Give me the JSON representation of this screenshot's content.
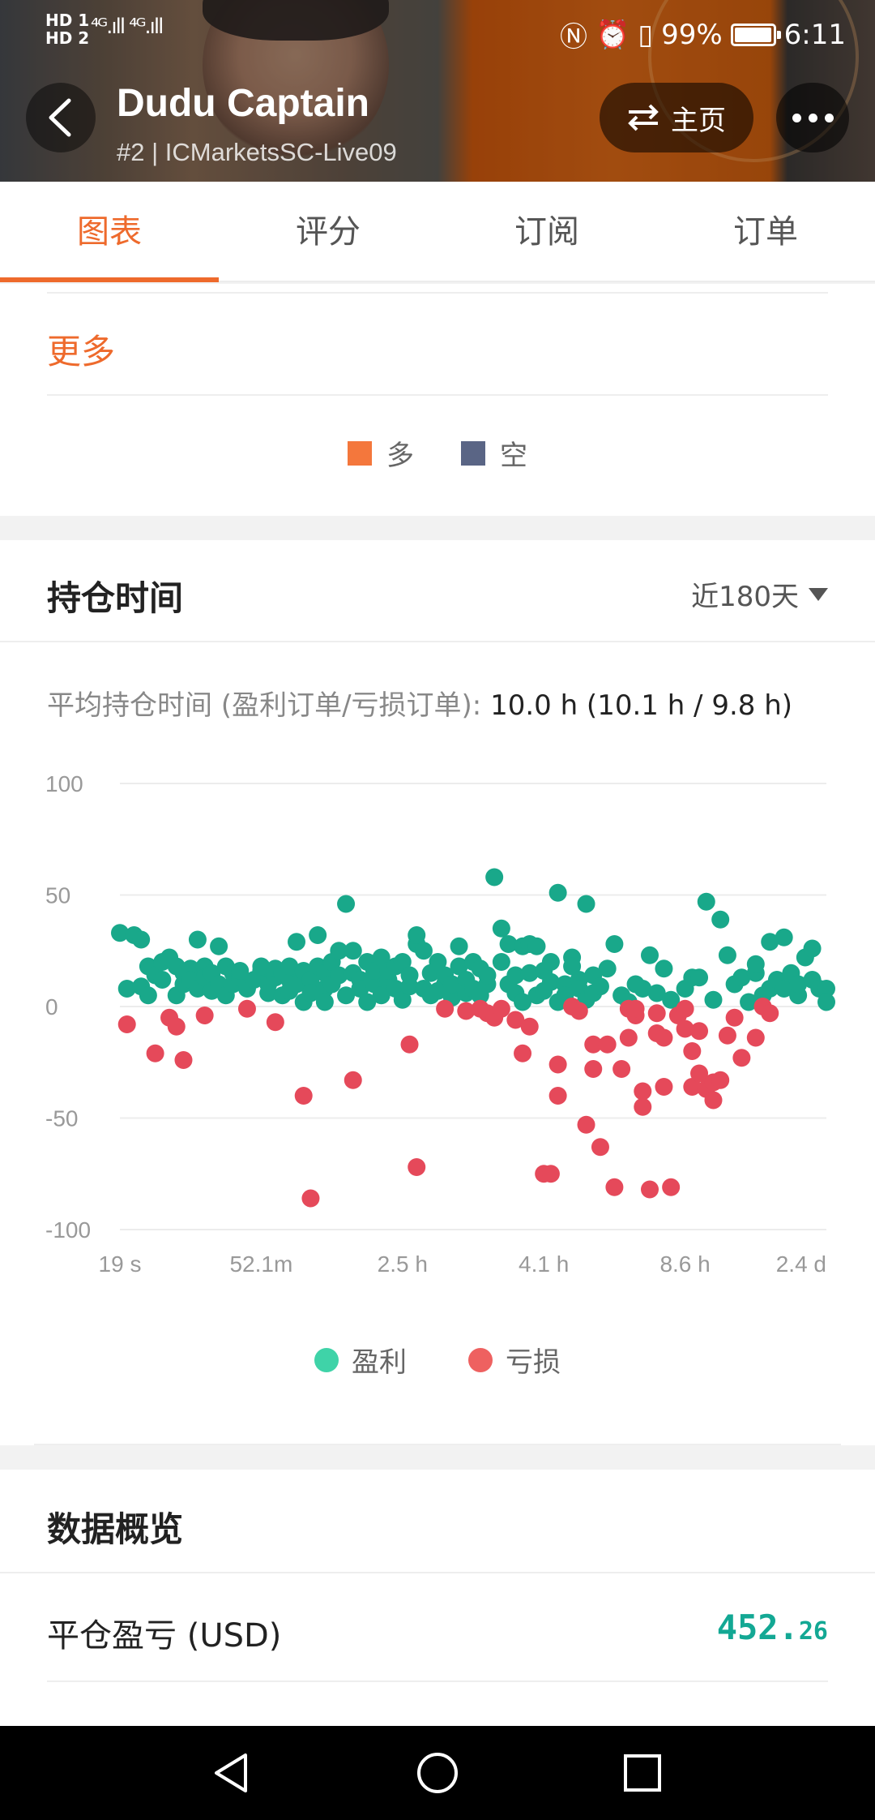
{
  "status_bar": {
    "hd1": "HD 1",
    "hd2": "HD 2",
    "signal": "⁴ᴳ.ıll ⁴ᴳ.ıll",
    "battery": "99%",
    "battery_level": 0.99,
    "time": "6:11"
  },
  "header": {
    "title": "Dudu Captain",
    "subtitle": "#2 | ICMarketsSC-Live09",
    "home_label": "主页"
  },
  "tabs": [
    {
      "label": "图表",
      "active": true
    },
    {
      "label": "评分",
      "active": false
    },
    {
      "label": "订阅",
      "active": false
    },
    {
      "label": "订单",
      "active": false
    }
  ],
  "direction_card": {
    "more_label": "更多",
    "legend": [
      {
        "label": "多",
        "color": "#f4773c"
      },
      {
        "label": "空",
        "color": "#5a6585"
      }
    ]
  },
  "holding_time": {
    "title": "持仓时间",
    "period": "近180天",
    "avg_label": "平均持仓时间 (盈利订单/亏损订单):",
    "avg_value": "10.0 h (10.1 h / 9.8 h)"
  },
  "chart_data": {
    "type": "scatter",
    "ylim": [
      -100,
      100
    ],
    "y_ticks": [
      "100",
      "50",
      "0",
      "-50",
      "-100"
    ],
    "x_ticks": [
      "19 s",
      "52.1m",
      "2.5 h",
      "4.1 h",
      "8.6 h",
      "2.4 d"
    ],
    "x_range": [
      0,
      100
    ],
    "series": [
      {
        "name": "盈利",
        "color": "#19a88a",
        "points": [
          [
            0,
            33
          ],
          [
            2,
            32
          ],
          [
            3,
            30
          ],
          [
            1,
            8
          ],
          [
            3,
            9
          ],
          [
            4,
            18
          ],
          [
            5,
            14
          ],
          [
            4,
            5
          ],
          [
            6,
            12
          ],
          [
            6,
            20
          ],
          [
            7,
            22
          ],
          [
            8,
            18
          ],
          [
            8,
            5
          ],
          [
            9,
            10
          ],
          [
            9,
            15
          ],
          [
            10,
            17
          ],
          [
            10,
            12
          ],
          [
            11,
            30
          ],
          [
            11,
            8
          ],
          [
            12,
            18
          ],
          [
            12,
            13
          ],
          [
            13,
            15
          ],
          [
            13,
            7
          ],
          [
            14,
            10
          ],
          [
            14,
            27
          ],
          [
            15,
            18
          ],
          [
            15,
            5
          ],
          [
            16,
            15
          ],
          [
            16,
            10
          ],
          [
            17,
            13
          ],
          [
            17,
            16
          ],
          [
            18,
            8
          ],
          [
            19,
            12
          ],
          [
            20,
            16
          ],
          [
            20,
            18
          ],
          [
            21,
            10
          ],
          [
            21,
            6
          ],
          [
            22,
            13
          ],
          [
            22,
            17
          ],
          [
            23,
            5
          ],
          [
            23,
            15
          ],
          [
            24,
            12
          ],
          [
            24,
            18
          ],
          [
            24,
            7
          ],
          [
            25,
            10
          ],
          [
            25,
            29
          ],
          [
            26,
            2
          ],
          [
            26,
            16
          ],
          [
            27,
            12
          ],
          [
            27,
            6
          ],
          [
            28,
            18
          ],
          [
            28,
            32
          ],
          [
            29,
            15
          ],
          [
            29,
            8
          ],
          [
            29,
            2
          ],
          [
            30,
            20
          ],
          [
            30,
            10
          ],
          [
            31,
            25
          ],
          [
            31,
            14
          ],
          [
            32,
            46
          ],
          [
            32,
            5
          ],
          [
            33,
            25
          ],
          [
            33,
            15
          ],
          [
            34,
            12
          ],
          [
            34,
            8
          ],
          [
            35,
            20
          ],
          [
            35,
            2
          ],
          [
            36,
            10
          ],
          [
            36,
            16
          ],
          [
            37,
            22
          ],
          [
            37,
            5
          ],
          [
            38,
            12
          ],
          [
            38,
            16
          ],
          [
            39,
            18
          ],
          [
            39,
            8
          ],
          [
            40,
            20
          ],
          [
            40,
            3
          ],
          [
            41,
            9
          ],
          [
            41,
            14
          ],
          [
            42,
            28
          ],
          [
            42,
            32
          ],
          [
            43,
            25
          ],
          [
            43,
            8
          ],
          [
            44,
            15
          ],
          [
            44,
            5
          ],
          [
            45,
            7
          ],
          [
            45,
            20
          ],
          [
            46,
            10
          ],
          [
            46,
            14
          ],
          [
            47,
            4
          ],
          [
            47,
            10
          ],
          [
            48,
            27
          ],
          [
            48,
            18
          ],
          [
            49,
            12
          ],
          [
            49,
            6
          ],
          [
            50,
            8
          ],
          [
            50,
            20
          ],
          [
            51,
            17
          ],
          [
            51,
            5
          ],
          [
            52,
            10
          ],
          [
            52,
            14
          ],
          [
            53,
            58
          ],
          [
            54,
            35
          ],
          [
            54,
            20
          ],
          [
            55,
            10
          ],
          [
            55,
            28
          ],
          [
            56,
            14
          ],
          [
            56,
            6
          ],
          [
            57,
            2
          ],
          [
            57,
            27
          ],
          [
            58,
            28
          ],
          [
            58,
            15
          ],
          [
            59,
            27
          ],
          [
            59,
            5
          ],
          [
            60,
            16
          ],
          [
            60,
            7
          ],
          [
            61,
            11
          ],
          [
            61,
            20
          ],
          [
            62,
            51
          ],
          [
            62,
            2
          ],
          [
            63,
            10
          ],
          [
            63,
            5
          ],
          [
            64,
            22
          ],
          [
            64,
            18
          ],
          [
            65,
            12
          ],
          [
            65,
            8
          ],
          [
            66,
            46
          ],
          [
            66,
            3
          ],
          [
            67,
            14
          ],
          [
            67,
            6
          ],
          [
            68,
            9
          ],
          [
            69,
            17
          ],
          [
            70,
            28
          ],
          [
            71,
            5
          ],
          [
            72,
            2
          ],
          [
            73,
            10
          ],
          [
            74,
            8
          ],
          [
            75,
            23
          ],
          [
            76,
            6
          ],
          [
            77,
            17
          ],
          [
            78,
            3
          ],
          [
            80,
            8
          ],
          [
            81,
            13
          ],
          [
            82,
            13
          ],
          [
            83,
            47
          ],
          [
            84,
            3
          ],
          [
            85,
            39
          ],
          [
            86,
            23
          ],
          [
            87,
            10
          ],
          [
            88,
            13
          ],
          [
            89,
            2
          ],
          [
            90,
            15
          ],
          [
            90,
            19
          ],
          [
            91,
            5
          ],
          [
            92,
            8
          ],
          [
            92,
            29
          ],
          [
            93,
            12
          ],
          [
            94,
            31
          ],
          [
            94,
            8
          ],
          [
            95,
            15
          ],
          [
            96,
            5
          ],
          [
            96,
            10
          ],
          [
            97,
            22
          ],
          [
            98,
            12
          ],
          [
            98,
            26
          ],
          [
            99,
            8
          ],
          [
            100,
            8
          ],
          [
            100,
            2
          ]
        ]
      },
      {
        "name": "亏损",
        "color": "#e5495a",
        "points": [
          [
            1,
            -8
          ],
          [
            5,
            -21
          ],
          [
            7,
            -5
          ],
          [
            8,
            -9
          ],
          [
            9,
            -24
          ],
          [
            12,
            -4
          ],
          [
            18,
            -1
          ],
          [
            22,
            -7
          ],
          [
            26,
            -40
          ],
          [
            27,
            -86
          ],
          [
            33,
            -33
          ],
          [
            41,
            -17
          ],
          [
            42,
            -72
          ],
          [
            46,
            -1
          ],
          [
            49,
            -2
          ],
          [
            51,
            -1
          ],
          [
            52,
            -3
          ],
          [
            53,
            -5
          ],
          [
            54,
            -1
          ],
          [
            56,
            -6
          ],
          [
            57,
            -21
          ],
          [
            58,
            -9
          ],
          [
            60,
            -75
          ],
          [
            61,
            -75
          ],
          [
            62,
            -26
          ],
          [
            62,
            -40
          ],
          [
            64,
            0
          ],
          [
            65,
            -2
          ],
          [
            66,
            -53
          ],
          [
            67,
            -28
          ],
          [
            67,
            -17
          ],
          [
            68,
            -63
          ],
          [
            69,
            -17
          ],
          [
            70,
            -81
          ],
          [
            71,
            -28
          ],
          [
            72,
            -1
          ],
          [
            72,
            -14
          ],
          [
            73,
            -4
          ],
          [
            73,
            -1
          ],
          [
            74,
            -45
          ],
          [
            74,
            -38
          ],
          [
            75,
            -82
          ],
          [
            76,
            -12
          ],
          [
            76,
            -3
          ],
          [
            77,
            -36
          ],
          [
            77,
            -14
          ],
          [
            78,
            -81
          ],
          [
            79,
            -4
          ],
          [
            80,
            -1
          ],
          [
            80,
            -10
          ],
          [
            81,
            -20
          ],
          [
            81,
            -36
          ],
          [
            82,
            -11
          ],
          [
            82,
            -30
          ],
          [
            83,
            -37
          ],
          [
            84,
            -42
          ],
          [
            84,
            -34
          ],
          [
            85,
            -33
          ],
          [
            86,
            -13
          ],
          [
            87,
            -5
          ],
          [
            88,
            -23
          ],
          [
            90,
            -14
          ],
          [
            91,
            0
          ],
          [
            92,
            -3
          ]
        ]
      }
    ]
  },
  "chart_legend": [
    {
      "label": "盈利",
      "color": "#3fd3a8"
    },
    {
      "label": "亏损",
      "color": "#ee6160"
    }
  ],
  "overview": {
    "title": "数据概览",
    "pnl_label": "平仓盈亏 (USD)",
    "pnl_int": "452.",
    "pnl_dec": "26"
  }
}
